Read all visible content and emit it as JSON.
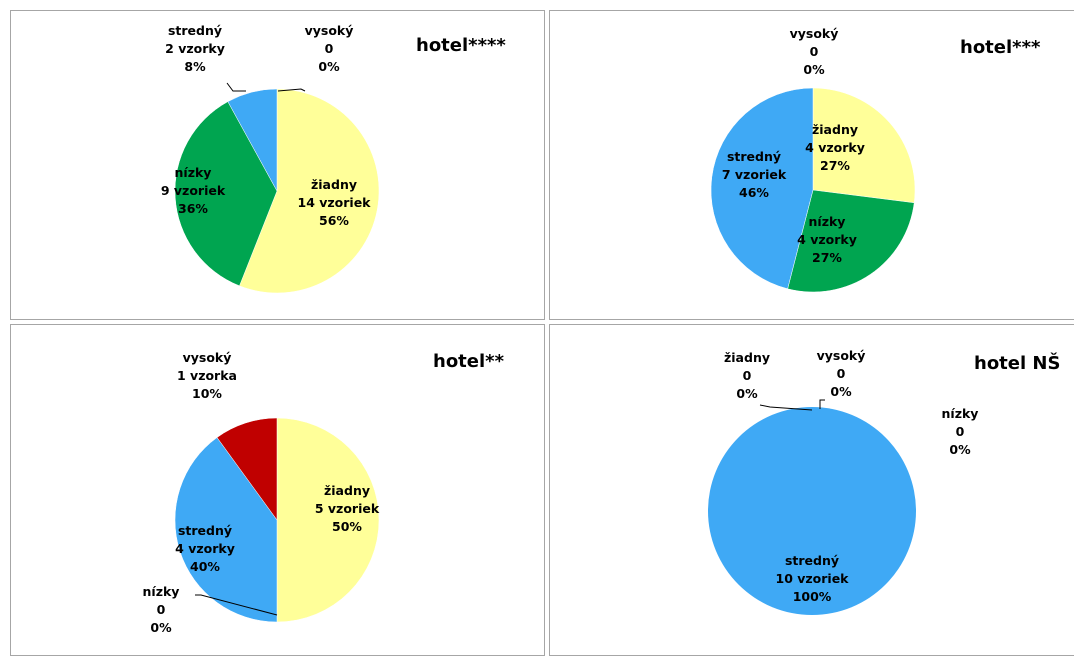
{
  "chart_data": [
    {
      "type": "pie",
      "title": "hotel****",
      "series": [
        {
          "name": "žiadny",
          "count": "14 vzoriek",
          "value": 56,
          "percent": "56%",
          "color": "#ffff99"
        },
        {
          "name": "nízky",
          "count": "9 vzoriek",
          "value": 36,
          "percent": "36%",
          "color": "#00a550"
        },
        {
          "name": "stredný",
          "count": "2 vzorky",
          "value": 8,
          "percent": "8%",
          "color": "#3fa9f5"
        },
        {
          "name": "vysoký",
          "count": "0",
          "value": 0,
          "percent": "0%",
          "color": "#c00000"
        }
      ]
    },
    {
      "type": "pie",
      "title": "hotel***",
      "series": [
        {
          "name": "žiadny",
          "count": "4 vzorky",
          "value": 27,
          "percent": "27%",
          "color": "#ffff99"
        },
        {
          "name": "nízky",
          "count": "4 vzorky",
          "value": 27,
          "percent": "27%",
          "color": "#00a550"
        },
        {
          "name": "stredný",
          "count": "7 vzoriek",
          "value": 46,
          "percent": "46%",
          "color": "#3fa9f5"
        },
        {
          "name": "vysoký",
          "count": "0",
          "value": 0,
          "percent": "0%",
          "color": "#c00000"
        }
      ]
    },
    {
      "type": "pie",
      "title": "hotel**",
      "series": [
        {
          "name": "žiadny",
          "count": "5 vzoriek",
          "value": 50,
          "percent": "50%",
          "color": "#ffff99"
        },
        {
          "name": "nízky",
          "count": "0",
          "value": 0,
          "percent": "0%",
          "color": "#00a550"
        },
        {
          "name": "stredný",
          "count": "4 vzorky",
          "value": 40,
          "percent": "40%",
          "color": "#3fa9f5"
        },
        {
          "name": "vysoký",
          "count": "1 vzorka",
          "value": 10,
          "percent": "10%",
          "color": "#c00000"
        }
      ]
    },
    {
      "type": "pie",
      "title": "hotel NŠ",
      "series": [
        {
          "name": "žiadny",
          "count": "0",
          "value": 0,
          "percent": "0%",
          "color": "#ffff99"
        },
        {
          "name": "nízky",
          "count": "0",
          "value": 0,
          "percent": "0%",
          "color": "#00a550"
        },
        {
          "name": "stredný",
          "count": "10 vzoriek",
          "value": 100,
          "percent": "100%",
          "color": "#3fa9f5"
        },
        {
          "name": "vysoký",
          "count": "0",
          "value": 0,
          "percent": "0%",
          "color": "#c00000"
        }
      ]
    }
  ]
}
